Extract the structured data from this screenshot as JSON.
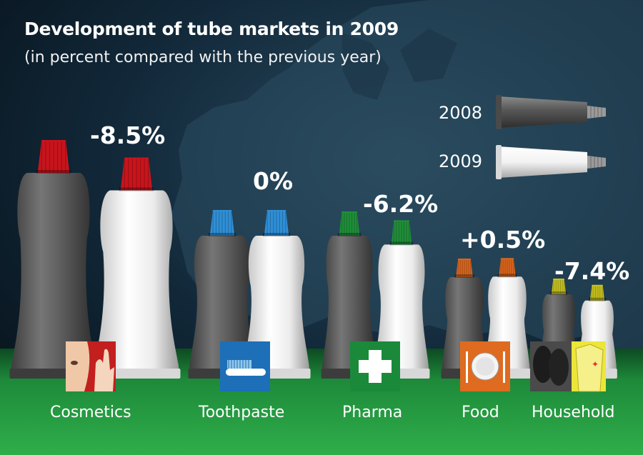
{
  "chart_data": {
    "type": "bar",
    "title": "Development of tube markets in 2009",
    "subtitle": "(in percent compared with the previous year)",
    "legend": {
      "placement": "top-right",
      "entries": [
        "2008",
        "2009"
      ]
    },
    "categories": [
      "Cosmetics",
      "Toothpaste",
      "Pharma",
      "Food",
      "Household"
    ],
    "series": [
      {
        "name": "2008",
        "values": [
          100,
          100,
          100,
          100,
          100
        ]
      },
      {
        "name": "2009",
        "values": [
          91.5,
          100,
          93.8,
          100.5,
          92.6
        ]
      }
    ],
    "change_labels": [
      "-8.5%",
      "0%",
      "-6.2%",
      "+0.5%",
      "-7.4%"
    ],
    "cap_colors": [
      "#c8141c",
      "#2f8fd6",
      "#1f8f3a",
      "#d9661e",
      "#c9c41f"
    ],
    "icons": [
      "cosmetics-icon",
      "toothbrush-icon",
      "pharma-cross-icon",
      "plate-cutlery-icon",
      "household-shirt-shoes-icon"
    ],
    "icon_colors": [
      "#c21f1f",
      "#1d6fb8",
      "#1a8a3a",
      "#de6b1f",
      "#ece63a"
    ],
    "colors": {
      "tube_2008": "#5a5a5a",
      "tube_2009": "#f4f4f4",
      "background_sky": "#0f2a3c",
      "floor": "#1e8a3a"
    }
  }
}
